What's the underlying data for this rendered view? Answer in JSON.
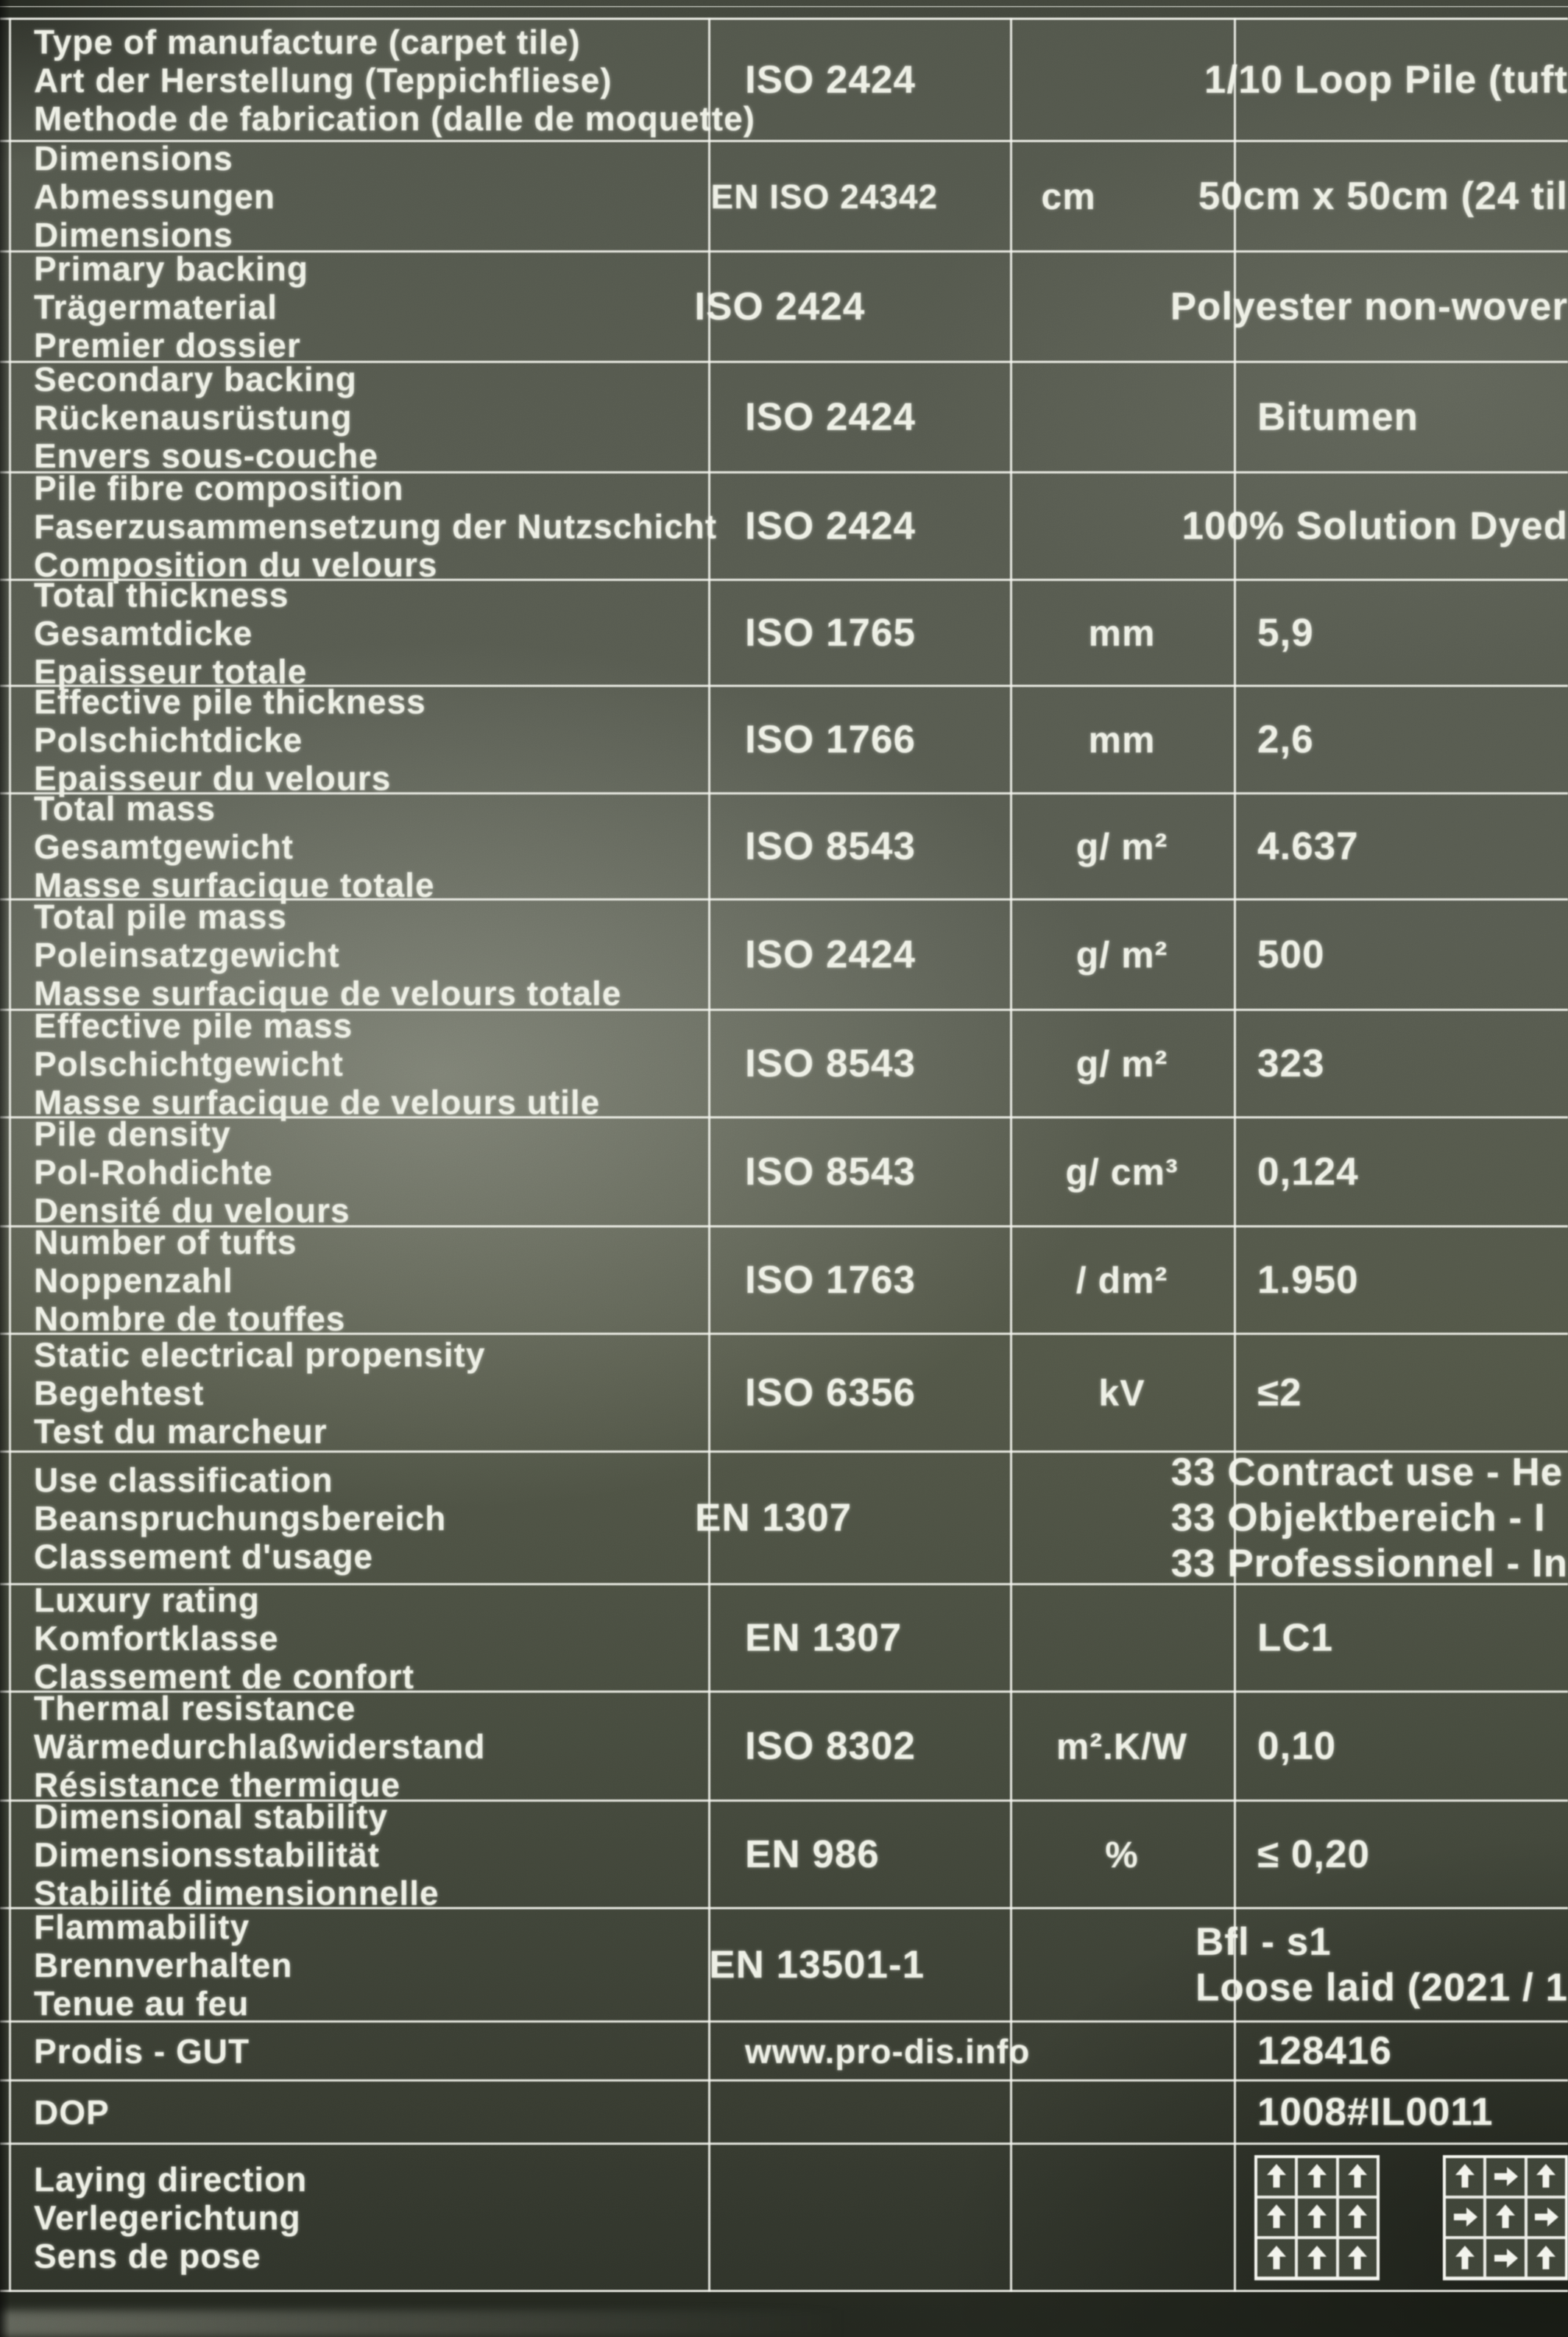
{
  "colors": {
    "sheet_light": "#8a8e80",
    "sheet_dark": "#2e3229",
    "text": "#edefe5",
    "grid_line": "#f2f3ec"
  },
  "table": {
    "columns": [
      "property",
      "standard",
      "unit",
      "value"
    ],
    "rows": [
      {
        "labels": [
          "Type of manufacture (carpet tile)",
          "Art der Herstellung (Teppichfliese)",
          "Methode de fabrication (dalle de moquette)"
        ],
        "standard": "ISO 2424",
        "unit": "",
        "values": [
          "1/10 Loop Pile (tuft"
        ]
      },
      {
        "labels": [
          "Dimensions",
          "Abmessungen",
          "Dimensions"
        ],
        "standard": "EN ISO 24342",
        "unit": "cm",
        "values": [
          "50cm x 50cm (24 til"
        ]
      },
      {
        "labels": [
          "Primary backing",
          "Trägermaterial",
          "Premier dossier"
        ],
        "standard": "ISO 2424",
        "unit": "",
        "values": [
          "Polyester non-wover"
        ]
      },
      {
        "labels": [
          "Secondary backing",
          "Rückenausrüstung",
          "Envers sous-couche"
        ],
        "standard": "ISO 2424",
        "unit": "",
        "values": [
          "Bitumen"
        ]
      },
      {
        "labels": [
          "Pile fibre composition",
          "Faserzusammensetzung der Nutzschicht",
          "Composition du velours"
        ],
        "standard": "ISO 2424",
        "unit": "",
        "values": [
          "100% Solution Dyed"
        ]
      },
      {
        "labels": [
          "Total thickness",
          "Gesamtdicke",
          "Epaisseur totale"
        ],
        "standard": "ISO 1765",
        "unit": "mm",
        "values": [
          "5,9"
        ]
      },
      {
        "labels": [
          "Effective pile thickness",
          "Polschichtdicke",
          "Epaisseur du velours"
        ],
        "standard": "ISO 1766",
        "unit": "mm",
        "values": [
          "2,6"
        ]
      },
      {
        "labels": [
          "Total mass",
          "Gesamtgewicht",
          "Masse surfacique totale"
        ],
        "standard": "ISO 8543",
        "unit": "g/ m²",
        "values": [
          "4.637"
        ]
      },
      {
        "labels": [
          "Total pile mass",
          "Poleinsatzgewicht",
          "Masse surfacique de velours totale"
        ],
        "standard": "ISO 2424",
        "unit": "g/ m²",
        "values": [
          "500"
        ]
      },
      {
        "labels": [
          "Effective pile mass",
          "Polschichtgewicht",
          "Masse surfacique de velours utile"
        ],
        "standard": "ISO 8543",
        "unit": "g/ m²",
        "values": [
          "323"
        ]
      },
      {
        "labels": [
          "Pile density",
          "Pol-Rohdichte",
          "Densité du velours"
        ],
        "standard": "ISO 8543",
        "unit": "g/ cm³",
        "values": [
          "0,124"
        ]
      },
      {
        "labels": [
          "Number of tufts",
          "Noppenzahl",
          "Nombre de touffes"
        ],
        "standard": "ISO 1763",
        "unit": "/ dm²",
        "values": [
          "1.950"
        ]
      },
      {
        "labels": [
          "Static electrical propensity",
          "Begehtest",
          "Test du marcheur"
        ],
        "standard": "ISO 6356",
        "unit": "kV",
        "values": [
          "≤2"
        ]
      },
      {
        "labels": [
          "Use classification",
          "Beanspruchungsbereich",
          "Classement d'usage"
        ],
        "standard": "EN 1307",
        "unit": "",
        "values": [
          "33 Contract use - He",
          "33 Objektbereich - I",
          "33 Professionnel - In"
        ]
      },
      {
        "labels": [
          "Luxury rating",
          "Komfortklasse",
          "Classement de confort"
        ],
        "standard": "EN 1307",
        "unit": "",
        "values": [
          "LC1"
        ]
      },
      {
        "labels": [
          "Thermal resistance",
          "Wärmedurchlaßwiderstand",
          "Résistance thermique"
        ],
        "standard": "ISO 8302",
        "unit": "m².K/W",
        "values": [
          "0,10"
        ]
      },
      {
        "labels": [
          "Dimensional stability",
          "Dimensionsstabilität",
          "Stabilité dimensionnelle"
        ],
        "standard": "EN 986",
        "unit": "%",
        "values": [
          "≤ 0,20"
        ]
      },
      {
        "labels": [
          "Flammability",
          "Brennverhalten",
          "Tenue au feu"
        ],
        "standard": "EN 13501-1",
        "unit": "",
        "values": [
          "Bfl - s1",
          "Loose laid (2021 / 1"
        ]
      },
      {
        "labels": [
          "Prodis - GUT"
        ],
        "standard": "www.pro-dis.info",
        "unit": "",
        "values": [
          "128416"
        ]
      },
      {
        "labels": [
          "DOP"
        ],
        "standard": "",
        "unit": "",
        "values": [
          "1008#IL0011"
        ]
      },
      {
        "labels": [
          "Laying direction",
          "Verlegerichtung",
          "Sens de pose"
        ],
        "standard": "",
        "unit": "",
        "values": []
      }
    ]
  },
  "laying_patterns": [
    {
      "name": "monolithic",
      "arrows": [
        [
          "up",
          "up",
          "up"
        ],
        [
          "up",
          "up",
          "up"
        ],
        [
          "up",
          "up",
          "up"
        ]
      ]
    },
    {
      "name": "quarter-turn",
      "arrows": [
        [
          "up",
          "right",
          "up"
        ],
        [
          "right",
          "up",
          "right"
        ],
        [
          "up",
          "right",
          "up"
        ]
      ]
    }
  ]
}
